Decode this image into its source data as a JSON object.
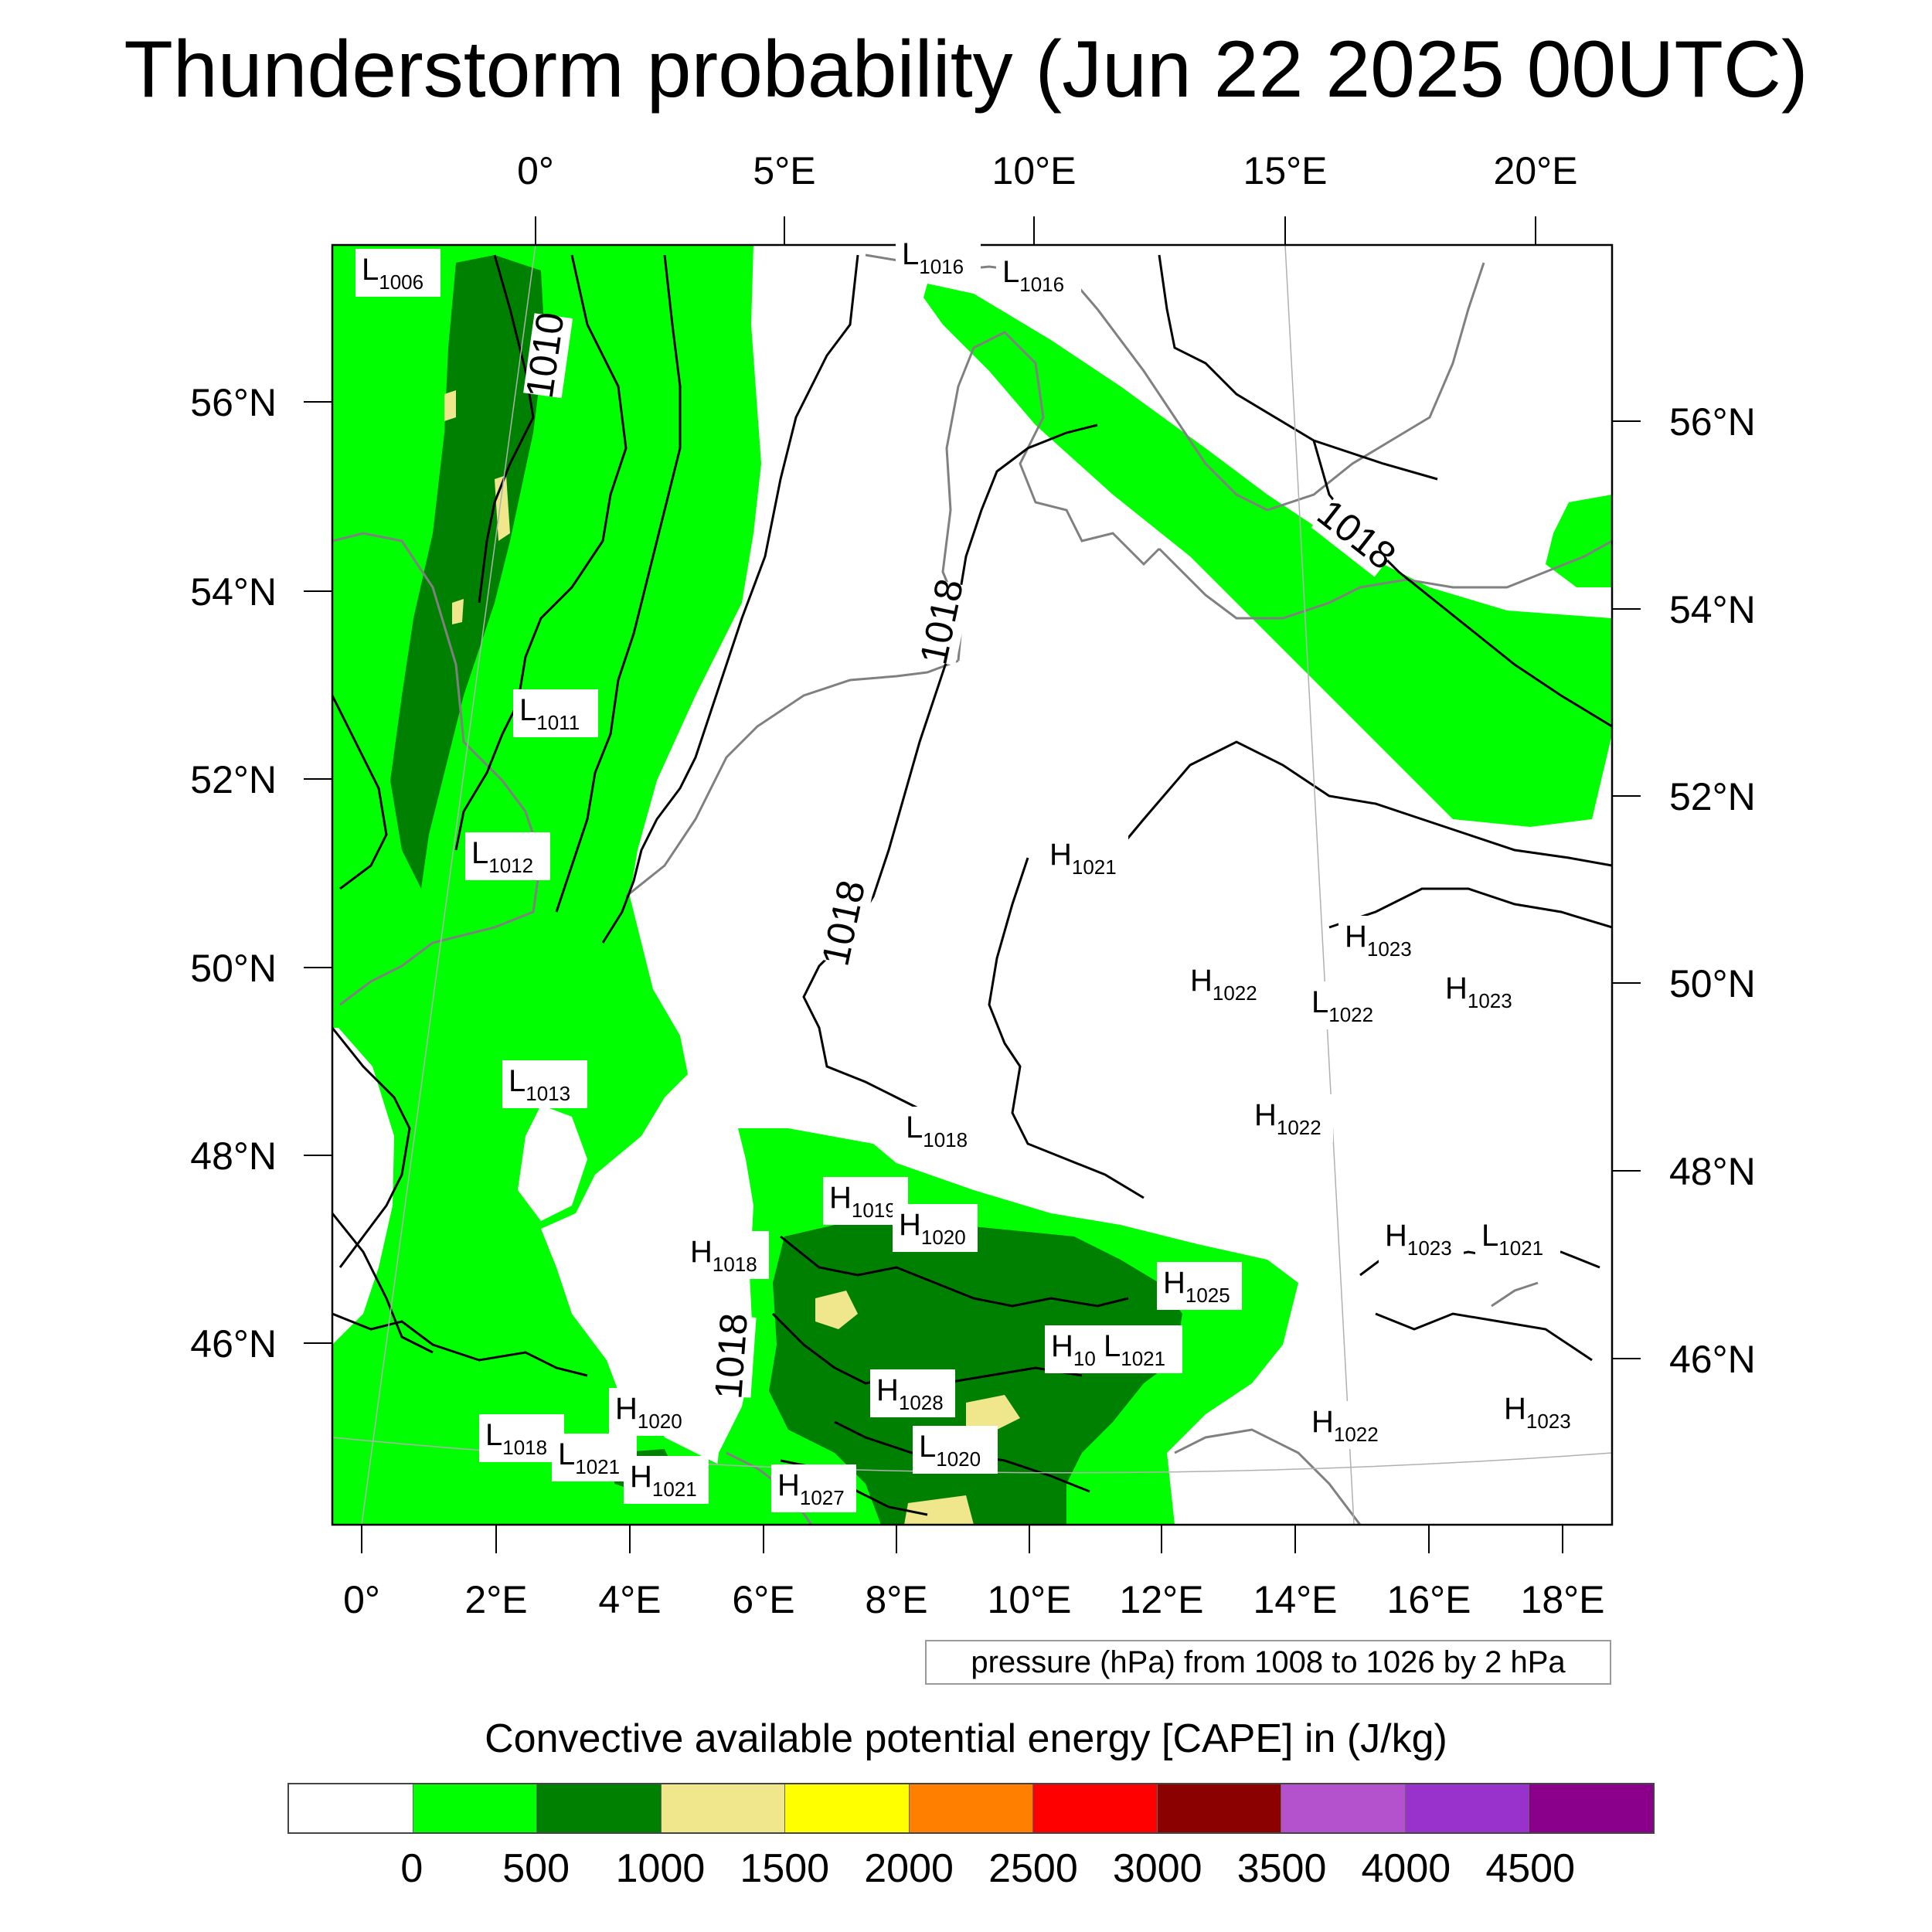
{
  "title": "Thunderstorm probability (Jun 22 2025 00UTC)",
  "top_lon_labels": [
    "0°",
    "5°E",
    "10°E",
    "15°E",
    "20°E"
  ],
  "bottom_lon_labels": [
    "0°",
    "2°E",
    "4°E",
    "6°E",
    "8°E",
    "10°E",
    "12°E",
    "14°E",
    "16°E",
    "18°E"
  ],
  "left_lat_labels": [
    "56°N",
    "54°N",
    "52°N",
    "50°N",
    "48°N",
    "46°N"
  ],
  "right_lat_labels": [
    "56°N",
    "54°N",
    "52°N",
    "50°N",
    "48°N",
    "46°N"
  ],
  "isobar_labels": [
    "1010",
    "1018",
    "1018",
    "1018",
    "1018"
  ],
  "pressure_centers": [
    {
      "type": "L",
      "value": "1006"
    },
    {
      "type": "L",
      "value": "1016"
    },
    {
      "type": "L",
      "value": "1016"
    },
    {
      "type": "L",
      "value": "1011"
    },
    {
      "type": "L",
      "value": "1012"
    },
    {
      "type": "L",
      "value": "1013"
    },
    {
      "type": "L",
      "value": "1018"
    },
    {
      "type": "H",
      "value": "1019"
    },
    {
      "type": "H",
      "value": "1020"
    },
    {
      "type": "H",
      "value": "1018"
    },
    {
      "type": "H",
      "value": "1021"
    },
    {
      "type": "H",
      "value": "1023"
    },
    {
      "type": "H",
      "value": "1022"
    },
    {
      "type": "L",
      "value": "1022"
    },
    {
      "type": "H",
      "value": "1023"
    },
    {
      "type": "H",
      "value": "1022"
    },
    {
      "type": "H",
      "value": "1023"
    },
    {
      "type": "L",
      "value": "1021"
    },
    {
      "type": "H",
      "value": "1025"
    },
    {
      "type": "H",
      "value": "10"
    },
    {
      "type": "L",
      "value": "1021"
    },
    {
      "type": "H",
      "value": "1028"
    },
    {
      "type": "L",
      "value": "1020"
    },
    {
      "type": "H",
      "value": "1020"
    },
    {
      "type": "L",
      "value": "1018"
    },
    {
      "type": "L",
      "value": "1021"
    },
    {
      "type": "H",
      "value": "1021"
    },
    {
      "type": "H",
      "value": "1027"
    },
    {
      "type": "H",
      "value": "1022"
    },
    {
      "type": "H",
      "value": "1023"
    }
  ],
  "pressure_note": "pressure (hPa) from 1008 to 1026 by 2 hPa",
  "colorbar_title": "Convective available potential energy [CAPE] in (J/kg)",
  "colorbar_colors": [
    "#ffffff",
    "#00ff00",
    "#008000",
    "#f0e68c",
    "#ffff00",
    "#ff8000",
    "#ff0000",
    "#8b0000",
    "#b452cd",
    "#9932cc",
    "#8b008b"
  ],
  "colorbar_labels": [
    "0",
    "500",
    "1000",
    "1500",
    "2000",
    "2500",
    "3000",
    "3500",
    "4000",
    "4500"
  ],
  "field_colors": {
    "light_green": "#00ff00",
    "dark_green": "#008000",
    "khaki": "#f0e68c",
    "coast": "#808080"
  }
}
